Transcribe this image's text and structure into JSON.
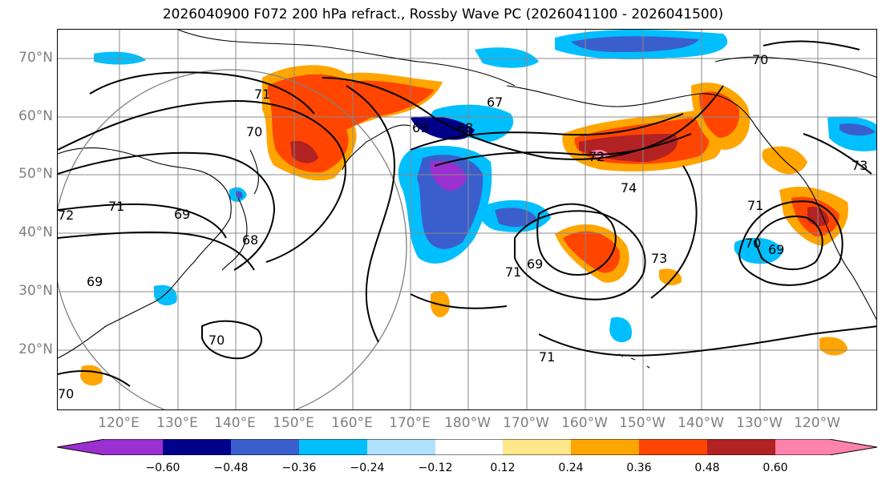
{
  "title": "2026040900 F072 200 hPa refract., Rossby Wave PC (2026041100 - 2026041500)",
  "lat_labels": [
    "70°N",
    "60°N",
    "50°N",
    "40°N",
    "30°N",
    "20°N"
  ],
  "lon_labels": [
    "120°E",
    "130°E",
    "140°E",
    "150°E",
    "160°E",
    "170°E",
    "180°W",
    "170°W",
    "160°W",
    "150°W",
    "140°W",
    "130°W",
    "120°W"
  ],
  "contour_labels": [
    "71",
    "70",
    "69",
    "68",
    "67",
    "72",
    "74",
    "71",
    "72",
    "69",
    "68",
    "69",
    "70",
    "69",
    "71",
    "73",
    "71",
    "70",
    "69",
    "70",
    "71",
    "70",
    "73"
  ],
  "colorbar": {
    "ticks": [
      "−0.60",
      "−0.48",
      "−0.36",
      "−0.24",
      "−0.12",
      "0.12",
      "0.24",
      "0.36",
      "0.48",
      "0.60"
    ],
    "colors": [
      "#9b30d0",
      "#00008b",
      "#3a5fcd",
      "#00bfff",
      "#b0e2ff",
      "#ffffff",
      "#ffe78c",
      "#ffa500",
      "#ff4500",
      "#b22222",
      "#ff82ab"
    ]
  },
  "colors": {
    "land_outline": "#000000",
    "grid": "#888888",
    "axis_label": "#7f7f7f"
  }
}
